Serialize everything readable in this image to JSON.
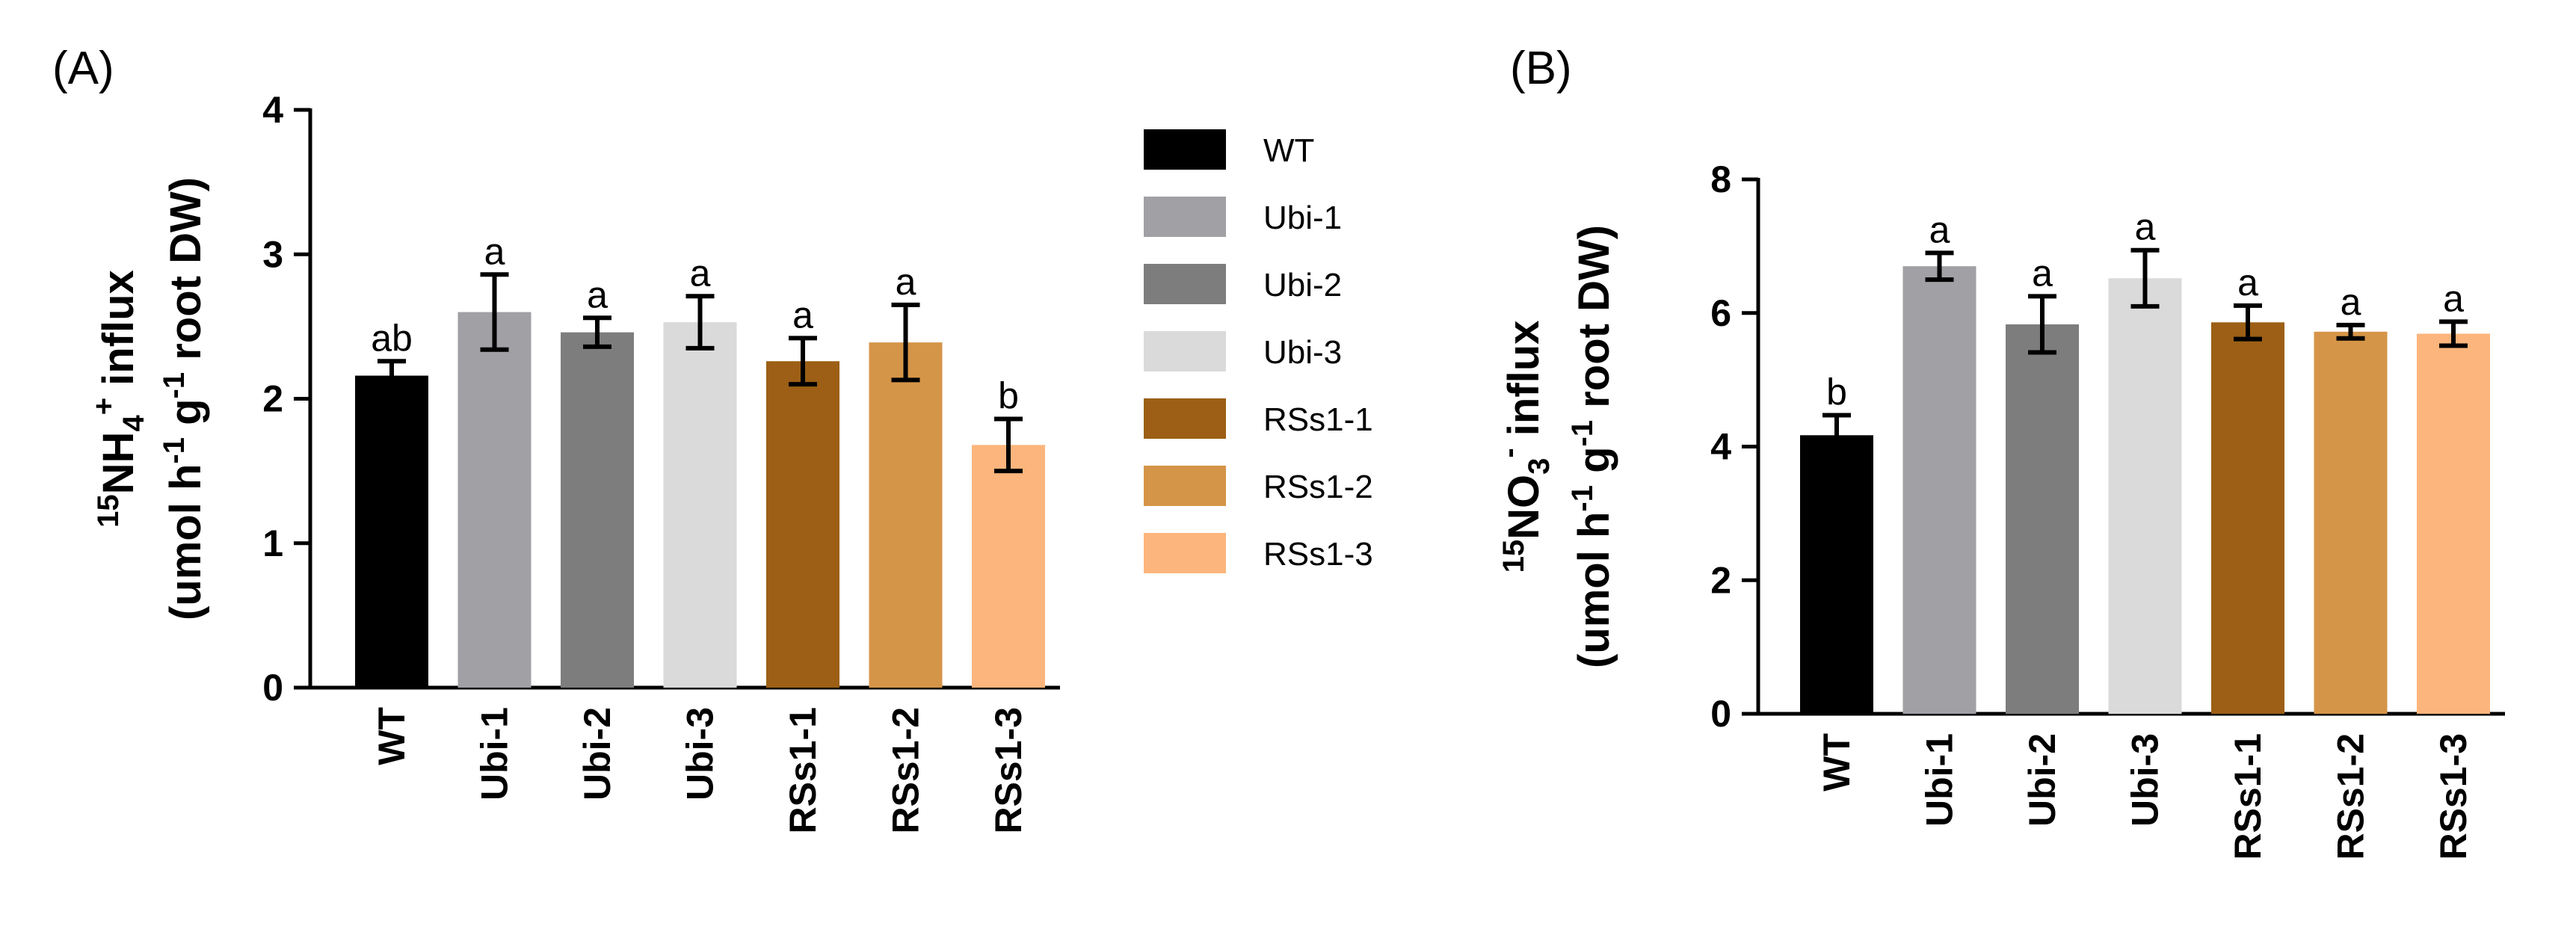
{
  "colors": {
    "WT": "#000000",
    "Ubi-1": "#a0a0a5",
    "Ubi-2": "#7d7d7d",
    "Ubi-3": "#dadada",
    "RSs1-1": "#9c5f15",
    "RSs1-2": "#d59548",
    "RSs1-3": "#fcb57c"
  },
  "legend": [
    "WT",
    "Ubi-1",
    "Ubi-2",
    "Ubi-3",
    "RSs1-1",
    "RSs1-2",
    "RSs1-3"
  ],
  "chart_data": [
    {
      "type": "bar",
      "panel_label": "(A)",
      "ylabel_line1": {
        "pre": "15",
        "main": "NH",
        "sub": "4",
        "sup": "+",
        "rest": " influx"
      },
      "ylabel_line2": [
        "(umol h",
        "-1",
        " g",
        "-1",
        " root DW)"
      ],
      "categories": [
        "WT",
        "Ubi-1",
        "Ubi-2",
        "Ubi-3",
        "RSs1-1",
        "RSs1-2",
        "RSs1-3"
      ],
      "values": [
        2.16,
        2.6,
        2.46,
        2.53,
        2.26,
        2.39,
        1.68
      ],
      "errors": [
        0.1,
        0.26,
        0.1,
        0.18,
        0.16,
        0.26,
        0.18
      ],
      "significance": [
        "ab",
        "a",
        "a",
        "a",
        "a",
        "a",
        "b"
      ],
      "ylim": [
        0,
        4
      ],
      "yticks": [
        "0",
        "1",
        "2",
        "3",
        "4"
      ]
    },
    {
      "type": "bar",
      "panel_label": "(B)",
      "ylabel_line1": {
        "pre": "15",
        "main": "NO",
        "sub": "3",
        "sup": "-",
        "rest": " influx"
      },
      "ylabel_line2": [
        "(umol h",
        "-1",
        " g",
        "-1",
        " root DW)"
      ],
      "categories": [
        "WT",
        "Ubi-1",
        "Ubi-2",
        "Ubi-3",
        "RSs1-1",
        "RSs1-2",
        "RSs1-3"
      ],
      "values": [
        4.17,
        6.7,
        5.83,
        6.52,
        5.86,
        5.72,
        5.69
      ],
      "errors": [
        0.3,
        0.2,
        0.42,
        0.42,
        0.25,
        0.1,
        0.18
      ],
      "significance": [
        "b",
        "a",
        "a",
        "a",
        "a",
        "a",
        "a"
      ],
      "ylim": [
        0,
        8
      ],
      "yticks": [
        "0",
        "2",
        "4",
        "6",
        "8"
      ]
    }
  ]
}
